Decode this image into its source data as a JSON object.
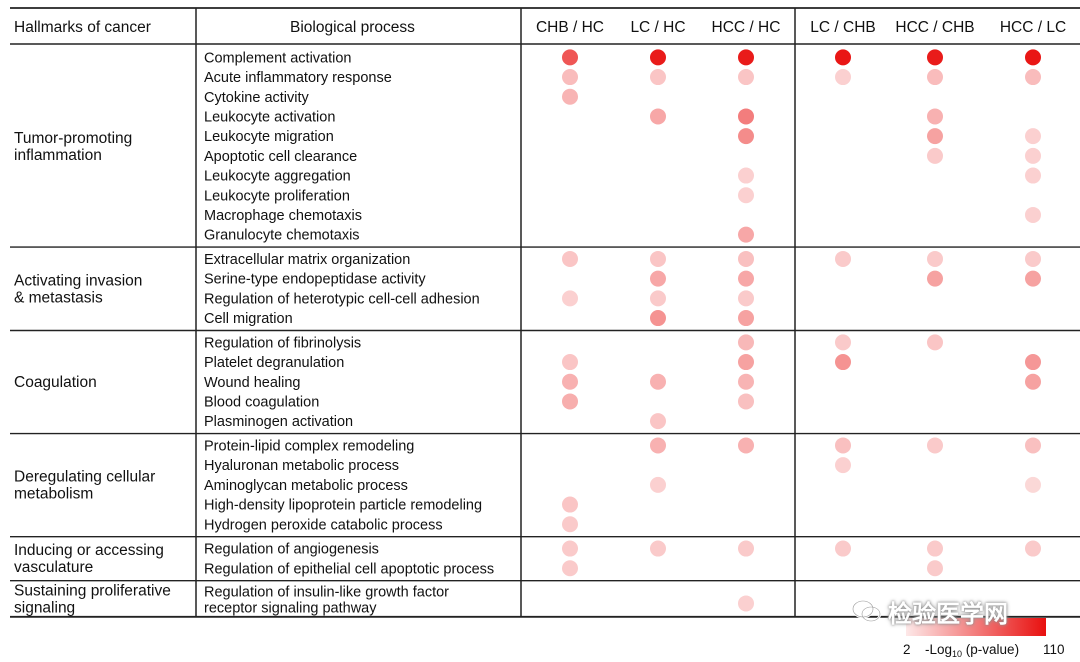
{
  "chart_data": {
    "type": "dot-matrix",
    "header": {
      "hallmark": "Hallmarks of cancer",
      "process": "Biological process"
    },
    "comparisons": [
      "CHB / HC",
      "LC / HC",
      "HCC / HC",
      "LC / CHB",
      "HCC / CHB",
      "HCC / LC"
    ],
    "color_scale": {
      "label": "-Log10 (p-value)",
      "label_main": "-Log",
      "label_sub": "10",
      "label_tail": " (p-value)",
      "min_label": "2",
      "max_label": "110",
      "min": 2,
      "max": 110,
      "low_color": "#fde8e8",
      "high_color": "#e8100f"
    },
    "groups": [
      {
        "hallmark": [
          "Tumor-promoting",
          "inflammation"
        ],
        "rows": [
          {
            "process": [
              "Complement activation"
            ],
            "values": [
              55,
              100,
              100,
              105,
              100,
              105
            ]
          },
          {
            "process": [
              "Acute inflammatory response"
            ],
            "values": [
              8,
              6,
              6,
              4,
              8,
              8
            ]
          },
          {
            "process": [
              "Cytokine activity"
            ],
            "values": [
              10,
              null,
              null,
              null,
              null,
              null
            ]
          },
          {
            "process": [
              "Leukocyte activation"
            ],
            "values": [
              null,
              14,
              32,
              null,
              11,
              null
            ]
          },
          {
            "process": [
              "Leukocyte migration"
            ],
            "values": [
              null,
              null,
              25,
              null,
              16,
              4
            ]
          },
          {
            "process": [
              "Apoptotic cell clearance"
            ],
            "values": [
              null,
              null,
              null,
              null,
              5,
              4
            ]
          },
          {
            "process": [
              "Leukocyte aggregation"
            ],
            "values": [
              null,
              null,
              4,
              null,
              null,
              4
            ]
          },
          {
            "process": [
              "Leukocyte proliferation"
            ],
            "values": [
              null,
              null,
              4,
              null,
              null,
              null
            ]
          },
          {
            "process": [
              "Macrophage chemotaxis"
            ],
            "values": [
              null,
              null,
              null,
              null,
              null,
              4
            ]
          },
          {
            "process": [
              "Granulocyte chemotaxis"
            ],
            "values": [
              null,
              null,
              14,
              null,
              null,
              null
            ]
          }
        ]
      },
      {
        "hallmark": [
          "Activating invasion",
          "& metastasis"
        ],
        "rows": [
          {
            "process": [
              "Extracellular matrix organization"
            ],
            "values": [
              6,
              6,
              7,
              5,
              5,
              5
            ]
          },
          {
            "process": [
              "Serine-type endopeptidase activity"
            ],
            "values": [
              null,
              14,
              14,
              null,
              16,
              16
            ]
          },
          {
            "process": [
              "Regulation of heterotypic cell-cell adhesion"
            ],
            "values": [
              4,
              5,
              5,
              null,
              null,
              null
            ]
          },
          {
            "process": [
              "Cell migration"
            ],
            "values": [
              null,
              22,
              16,
              null,
              null,
              null
            ]
          }
        ]
      },
      {
        "hallmark": [
          "Coagulation"
        ],
        "rows": [
          {
            "process": [
              "Regulation of fibrinolysis"
            ],
            "values": [
              null,
              null,
              9,
              5,
              6,
              null
            ]
          },
          {
            "process": [
              "Platelet degranulation"
            ],
            "values": [
              6,
              null,
              16,
              22,
              null,
              20
            ]
          },
          {
            "process": [
              "Wound healing"
            ],
            "values": [
              11,
              11,
              10,
              null,
              null,
              16
            ]
          },
          {
            "process": [
              "Blood coagulation"
            ],
            "values": [
              12,
              null,
              7,
              null,
              null,
              null
            ]
          },
          {
            "process": [
              "Plasminogen activation"
            ],
            "values": [
              null,
              6,
              null,
              null,
              null,
              null
            ]
          }
        ]
      },
      {
        "hallmark": [
          "Deregulating cellular",
          "metabolism"
        ],
        "rows": [
          {
            "process": [
              "Protein-lipid complex remodeling"
            ],
            "values": [
              null,
              11,
              11,
              7,
              5,
              7
            ]
          },
          {
            "process": [
              "Hyaluronan metabolic process"
            ],
            "values": [
              null,
              null,
              null,
              4,
              null,
              null
            ]
          },
          {
            "process": [
              "Aminoglycan metabolic process"
            ],
            "values": [
              null,
              4,
              null,
              null,
              null,
              3
            ]
          },
          {
            "process": [
              "High-density lipoprotein particle remodeling"
            ],
            "values": [
              6,
              null,
              null,
              null,
              null,
              null
            ]
          },
          {
            "process": [
              "Hydrogen peroxide catabolic process"
            ],
            "values": [
              5,
              null,
              null,
              null,
              null,
              null
            ]
          }
        ]
      },
      {
        "hallmark": [
          "Inducing or accessing",
          "vasculature"
        ],
        "rows": [
          {
            "process": [
              "Regulation of angiogenesis"
            ],
            "values": [
              5,
              5,
              5,
              5,
              5,
              5
            ]
          },
          {
            "process": [
              "Regulation of epithelial cell apoptotic process"
            ],
            "values": [
              5,
              null,
              null,
              null,
              5,
              null
            ]
          }
        ]
      },
      {
        "hallmark": [
          "Sustaining proliferative",
          "signaling"
        ],
        "rows": [
          {
            "process": [
              "Regulation of insulin-like growth factor",
              "receptor signaling pathway"
            ],
            "values": [
              null,
              null,
              4,
              null,
              null,
              null
            ]
          }
        ]
      }
    ]
  },
  "watermark": {
    "text": "检验医学网",
    "icon": "wechat-icon"
  }
}
